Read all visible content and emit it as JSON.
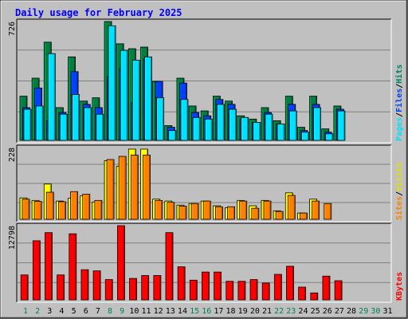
{
  "chart_data": {
    "type": "bar",
    "title": "Daily usage for February 2025",
    "x": [
      "1",
      "2",
      "3",
      "4",
      "5",
      "6",
      "7",
      "8",
      "9",
      "10",
      "11",
      "12",
      "13",
      "14",
      "15",
      "16",
      "17",
      "18",
      "19",
      "20",
      "21",
      "22",
      "23",
      "24",
      "25",
      "26",
      "27",
      "28",
      "29",
      "30",
      "31"
    ],
    "weekend_days": [
      1,
      2,
      8,
      9,
      15,
      16,
      22,
      23,
      29,
      30
    ],
    "colors": {
      "hits": "#008040",
      "files": "#0040ff",
      "pages": "#00e0ff",
      "visits": "#ffff00",
      "sites": "#ff8000",
      "kbytes": "#ff0000",
      "title": "#0000ff",
      "weekend_label": "#00805c",
      "weekday_label": "#000000"
    },
    "panels": [
      {
        "id": "hits",
        "max_label": "726",
        "ymax": 726,
        "legend": [
          {
            "text": "Pages",
            "color": "#00e0ff"
          },
          {
            "text": "/",
            "color": "#000000"
          },
          {
            "text": "Files",
            "color": "#0040ff"
          },
          {
            "text": "/",
            "color": "#000000"
          },
          {
            "text": "Hits",
            "color": "#00805c"
          }
        ],
        "series": [
          {
            "name": "Hits",
            "key": "hits",
            "values": [
              270,
              380,
              600,
              200,
              510,
              240,
              260,
              726,
              590,
              560,
              570,
              360,
              90,
              380,
              210,
              180,
              270,
              240,
              150,
              130,
              200,
              120,
              270,
              80,
              270,
              70,
              210,
              0,
              0,
              0,
              0
            ]
          },
          {
            "name": "Files",
            "key": "files",
            "values": [
              200,
              320,
              120,
              170,
              420,
              220,
              200,
              390,
              440,
              230,
              500,
              360,
              80,
              350,
              170,
              150,
              250,
              220,
              130,
              110,
              170,
              100,
              220,
              60,
              220,
              50,
              190,
              0,
              0,
              0,
              0
            ]
          },
          {
            "name": "Pages",
            "key": "pages",
            "values": [
              190,
              210,
              530,
              160,
              280,
              200,
              160,
              700,
              550,
              490,
              510,
              260,
              60,
              250,
              140,
              130,
              220,
              190,
              140,
              110,
              160,
              100,
              180,
              50,
              200,
              40,
              180,
              0,
              0,
              0,
              0
            ]
          }
        ]
      },
      {
        "id": "visits",
        "max_label": "228",
        "ymax": 228,
        "legend": [
          {
            "text": "Sites",
            "color": "#ff8000"
          },
          {
            "text": "/",
            "color": "#000000"
          },
          {
            "text": "Visits",
            "color": "#e0e000"
          }
        ],
        "series": [
          {
            "name": "Visits",
            "key": "visits",
            "values": [
              68,
              60,
              112,
              58,
              67,
              75,
              55,
              186,
              168,
              223,
              223,
              64,
              58,
              45,
              50,
              58,
              43,
              37,
              60,
              43,
              60,
              27,
              84,
              20,
              64,
              0,
              0,
              0,
              0,
              0,
              0
            ]
          },
          {
            "name": "Sites",
            "key": "sites",
            "values": [
              64,
              57,
              86,
              56,
              88,
              80,
              60,
              190,
              200,
              204,
              204,
              60,
              54,
              42,
              50,
              58,
              40,
              40,
              58,
              35,
              58,
              25,
              76,
              20,
              58,
              50,
              0,
              0,
              0,
              0,
              0
            ]
          }
        ]
      },
      {
        "id": "kbytes",
        "max_label": "12798",
        "ymax": 12798,
        "legend": [
          {
            "text": "KBytes",
            "color": "#ff0000"
          }
        ],
        "series": [
          {
            "name": "KBytes",
            "key": "kbytes",
            "values": [
              4300,
              10200,
              11600,
              4300,
              11400,
              5200,
              5000,
              3500,
              12798,
              3700,
              4200,
              4200,
              11600,
              5700,
              3400,
              4800,
              4800,
              3200,
              3200,
              3500,
              2900,
              4400,
              5800,
              2200,
              1200,
              4100,
              3300,
              0,
              0,
              0,
              0
            ]
          }
        ]
      }
    ]
  }
}
